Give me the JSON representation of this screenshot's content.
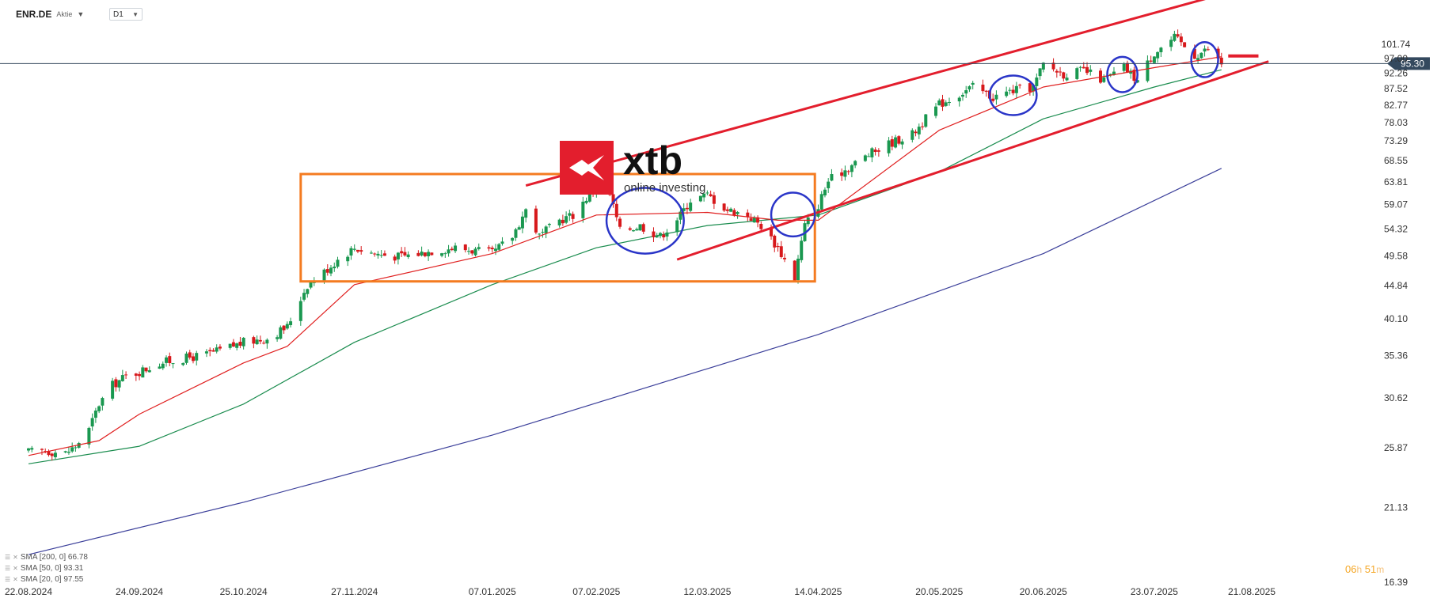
{
  "header": {
    "symbol": "ENR.DE",
    "type": "Aktie",
    "timeframe": "D1"
  },
  "legend": [
    {
      "label": "SMA [200, 0] 66.78",
      "color": "#3b3f9a"
    },
    {
      "label": "SMA [50, 0] 93.31",
      "color": "#1a8c4e"
    },
    {
      "label": "SMA [20, 0] 97.55",
      "color": "#e02020"
    }
  ],
  "timer": {
    "hours": "06",
    "h_unit": "h",
    "minutes": "51",
    "m_unit": "m"
  },
  "logo": {
    "name": "xtb",
    "tagline": "online investing",
    "color": "#e31e2d"
  },
  "current_price": {
    "label": "95.30",
    "value": 95.3,
    "color": "#34495e"
  },
  "chart_data": {
    "type": "candlestick",
    "y_scale": "log",
    "ylim": [
      16.39,
      115
    ],
    "y_ticks": [
      "101.74",
      "97.00",
      "92.26",
      "87.52",
      "82.77",
      "78.03",
      "73.29",
      "68.55",
      "63.81",
      "59.07",
      "54.32",
      "49.58",
      "44.84",
      "40.10",
      "35.36",
      "30.62",
      "25.87",
      "21.13",
      "16.39"
    ],
    "x_ticks": [
      "22.08.2024",
      "24.09.2024",
      "25.10.2024",
      "27.11.2024",
      "07.01.2025",
      "07.02.2025",
      "12.03.2025",
      "14.04.2025",
      "20.05.2025",
      "20.06.2025",
      "23.07.2025",
      "21.08.2025"
    ],
    "close_path": [
      [
        "22.08.2024",
        25.5
      ],
      [
        "27.08.2024",
        25.6
      ],
      [
        "02.09.2024",
        25.4
      ],
      [
        "05.09.2024",
        26.0
      ],
      [
        "09.09.2024",
        27.5
      ],
      [
        "12.09.2024",
        30.0
      ],
      [
        "16.09.2024",
        32.0
      ],
      [
        "20.09.2024",
        33.0
      ],
      [
        "24.09.2024",
        33.5
      ],
      [
        "30.09.2024",
        34.5
      ],
      [
        "07.10.2024",
        35.0
      ],
      [
        "14.10.2024",
        35.5
      ],
      [
        "18.10.2024",
        36.0
      ],
      [
        "25.10.2024",
        37.0
      ],
      [
        "01.11.2024",
        37.5
      ],
      [
        "07.11.2024",
        39.0
      ],
      [
        "13.11.2024",
        45.0
      ],
      [
        "18.11.2024",
        47.0
      ],
      [
        "22.11.2024",
        49.0
      ],
      [
        "27.11.2024",
        51.0
      ],
      [
        "03.12.2024",
        50.0
      ],
      [
        "10.12.2024",
        49.5
      ],
      [
        "16.12.2024",
        50.0
      ],
      [
        "20.12.2024",
        50.5
      ],
      [
        "27.12.2024",
        51.0
      ],
      [
        "02.01.2025",
        50.5
      ],
      [
        "07.01.2025",
        50.0
      ],
      [
        "13.01.2025",
        53.0
      ],
      [
        "17.01.2025",
        58.0
      ],
      [
        "21.01.2025",
        53.0
      ],
      [
        "27.01.2025",
        56.0
      ],
      [
        "31.01.2025",
        57.0
      ],
      [
        "07.02.2025",
        63.0
      ],
      [
        "11.02.2025",
        61.0
      ],
      [
        "14.02.2025",
        54.0
      ],
      [
        "20.02.2025",
        55.0
      ],
      [
        "26.02.2025",
        53.0
      ],
      [
        "04.03.2025",
        57.0
      ],
      [
        "07.03.2025",
        60.0
      ],
      [
        "12.03.2025",
        61.0
      ],
      [
        "18.03.2025",
        58.0
      ],
      [
        "24.03.2025",
        57.0
      ],
      [
        "28.03.2025",
        55.0
      ],
      [
        "02.04.2025",
        51.0
      ],
      [
        "07.04.2025",
        46.0
      ],
      [
        "10.04.2025",
        55.0
      ],
      [
        "14.04.2025",
        59.0
      ],
      [
        "17.04.2025",
        64.0
      ],
      [
        "23.04.2025",
        67.0
      ],
      [
        "29.04.2025",
        70.0
      ],
      [
        "06.05.2025",
        73.0
      ],
      [
        "12.05.2025",
        75.0
      ],
      [
        "16.05.2025",
        79.0
      ],
      [
        "20.05.2025",
        83.0
      ],
      [
        "26.05.2025",
        86.0
      ],
      [
        "30.05.2025",
        88.0
      ],
      [
        "05.06.2025",
        85.0
      ],
      [
        "11.06.2025",
        87.0
      ],
      [
        "17.06.2025",
        88.0
      ],
      [
        "20.06.2025",
        95.0
      ],
      [
        "26.06.2025",
        92.0
      ],
      [
        "02.07.2025",
        93.0
      ],
      [
        "08.07.2025",
        90.0
      ],
      [
        "14.07.2025",
        94.0
      ],
      [
        "18.07.2025",
        90.0
      ],
      [
        "23.07.2025",
        99.0
      ],
      [
        "29.07.2025",
        104.0
      ],
      [
        "04.08.2025",
        98.0
      ],
      [
        "08.08.2025",
        100.0
      ],
      [
        "12.08.2025",
        95.3
      ]
    ],
    "sma20_path": [
      [
        "22.08.2024",
        25.2
      ],
      [
        "12.09.2024",
        26.5
      ],
      [
        "24.09.2024",
        29.0
      ],
      [
        "25.10.2024",
        34.5
      ],
      [
        "07.11.2024",
        36.5
      ],
      [
        "27.11.2024",
        45.0
      ],
      [
        "07.01.2025",
        50.0
      ],
      [
        "07.02.2025",
        57.0
      ],
      [
        "12.03.2025",
        57.5
      ],
      [
        "02.04.2025",
        56.0
      ],
      [
        "14.04.2025",
        56.0
      ],
      [
        "20.05.2025",
        76.0
      ],
      [
        "20.06.2025",
        88.0
      ],
      [
        "23.07.2025",
        94.0
      ],
      [
        "12.08.2025",
        97.55
      ]
    ],
    "sma50_path": [
      [
        "22.08.2024",
        24.5
      ],
      [
        "24.09.2024",
        26.0
      ],
      [
        "25.10.2024",
        30.0
      ],
      [
        "27.11.2024",
        37.0
      ],
      [
        "07.01.2025",
        45.0
      ],
      [
        "07.02.2025",
        51.0
      ],
      [
        "12.03.2025",
        55.0
      ],
      [
        "14.04.2025",
        57.0
      ],
      [
        "20.05.2025",
        66.0
      ],
      [
        "20.06.2025",
        79.0
      ],
      [
        "23.07.2025",
        88.0
      ],
      [
        "12.08.2025",
        93.31
      ]
    ],
    "sma200_path": [
      [
        "22.08.2024",
        18.0
      ],
      [
        "25.10.2024",
        21.5
      ],
      [
        "07.01.2025",
        27.0
      ],
      [
        "14.04.2025",
        38.0
      ],
      [
        "20.06.2025",
        50.0
      ],
      [
        "12.08.2025",
        66.78
      ]
    ],
    "annotations": {
      "upper_channel": [
        [
          "17.01.2025",
          63.0
        ],
        [
          "08.08.2025",
          119.0
        ]
      ],
      "lower_channel": [
        [
          "03.03.2025",
          49.0
        ],
        [
          "26.08.2025",
          96.0
        ]
      ],
      "range_box": {
        "x": [
          "11.11.2024",
          "13.04.2025"
        ],
        "y": [
          45.5,
          65.5
        ]
      },
      "target_marker": {
        "x": [
          "14.08.2025",
          "23.08.2025"
        ],
        "y": 97.8
      },
      "circles": [
        {
          "x": [
            "10.02.2025",
            "05.03.2025"
          ],
          "y": [
            50.0,
            62.5
          ]
        },
        {
          "x": [
            "31.03.2025",
            "13.04.2025"
          ],
          "y": [
            53.0,
            61.5
          ]
        },
        {
          "x": [
            "04.06.2025",
            "18.06.2025"
          ],
          "y": [
            80.0,
            91.5
          ]
        },
        {
          "x": [
            "09.07.2025",
            "18.07.2025"
          ],
          "y": [
            86.5,
            97.5
          ]
        },
        {
          "x": [
            "03.08.2025",
            "11.08.2025"
          ],
          "y": [
            91.0,
            102.5
          ]
        }
      ]
    }
  }
}
